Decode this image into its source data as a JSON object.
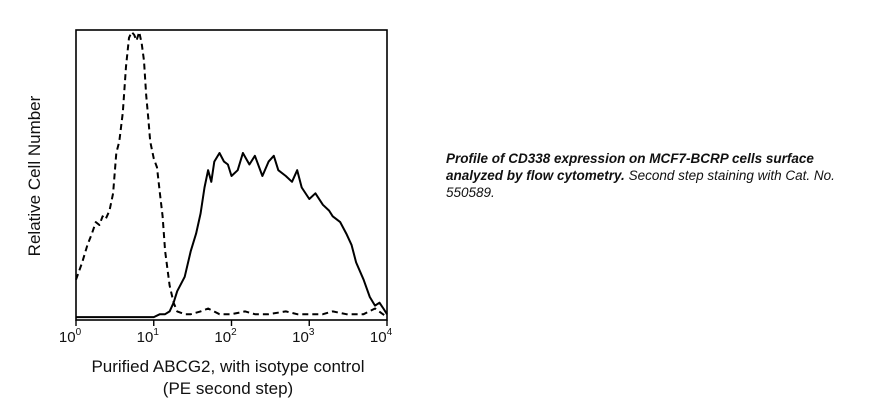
{
  "chart_data": {
    "type": "line",
    "title": "",
    "xlabel": "Purified ABCG2, with isotype control",
    "xlabel_line2": "(PE second step)",
    "ylabel": "Relative Cell Number",
    "x_scale": "log",
    "xlim": [
      1,
      10000
    ],
    "ylim": [
      0,
      100
    ],
    "grid": false,
    "legend": "none",
    "x_ticks": [
      {
        "base": "10",
        "exp": "0",
        "value": 1
      },
      {
        "base": "10",
        "exp": "1",
        "value": 10
      },
      {
        "base": "10",
        "exp": "2",
        "value": 100
      },
      {
        "base": "10",
        "exp": "3",
        "value": 1000
      },
      {
        "base": "10",
        "exp": "4",
        "value": 10000
      }
    ],
    "series": [
      {
        "style": "dashed",
        "color": "#000000",
        "x": [
          1,
          1.2,
          1.4,
          1.6,
          1.8,
          2.0,
          2.2,
          2.4,
          2.7,
          3.0,
          3.3,
          3.6,
          4.0,
          4.4,
          4.8,
          5.2,
          5.6,
          6.0,
          6.5,
          7.0,
          7.5,
          8.0,
          8.5,
          9.0,
          10,
          11,
          12,
          13,
          14,
          16,
          18,
          20,
          25,
          30,
          40,
          50,
          70,
          100,
          150,
          200,
          300,
          500,
          700,
          1000,
          1500,
          2000,
          3000,
          5000,
          7000,
          10000
        ],
        "y": [
          14,
          20,
          26,
          30,
          34,
          33,
          36,
          35,
          38,
          44,
          58,
          62,
          72,
          88,
          98,
          100,
          99,
          97,
          100,
          96,
          90,
          78,
          70,
          62,
          56,
          53,
          44,
          36,
          24,
          12,
          6,
          3,
          2,
          2,
          3,
          4,
          2,
          2,
          3,
          2,
          2,
          3,
          2,
          2,
          2,
          3,
          2,
          2,
          4,
          1
        ]
      },
      {
        "style": "solid",
        "color": "#000000",
        "x": [
          1,
          2,
          5,
          8,
          10,
          12,
          14,
          16,
          18,
          20,
          25,
          30,
          35,
          40,
          45,
          50,
          55,
          60,
          70,
          80,
          90,
          100,
          120,
          140,
          170,
          200,
          250,
          300,
          350,
          400,
          500,
          600,
          700,
          800,
          1000,
          1200,
          1500,
          1800,
          2000,
          2500,
          3000,
          3500,
          4000,
          5000,
          6000,
          7000,
          8000,
          9000,
          10000
        ],
        "y": [
          1,
          1,
          1,
          1,
          1,
          2,
          2,
          3,
          6,
          10,
          15,
          24,
          30,
          37,
          46,
          52,
          48,
          55,
          58,
          55,
          54,
          50,
          52,
          58,
          54,
          57,
          50,
          55,
          57,
          52,
          50,
          48,
          52,
          46,
          42,
          44,
          40,
          38,
          36,
          34,
          30,
          26,
          20,
          14,
          8,
          5,
          6,
          4,
          2
        ]
      }
    ]
  },
  "caption": {
    "bold_text": "Profile of CD338 expression on MCF7-BCRP cells surface analyzed by flow cytometry.",
    "normal_text": " Second step staining with Cat. No. 550589."
  }
}
